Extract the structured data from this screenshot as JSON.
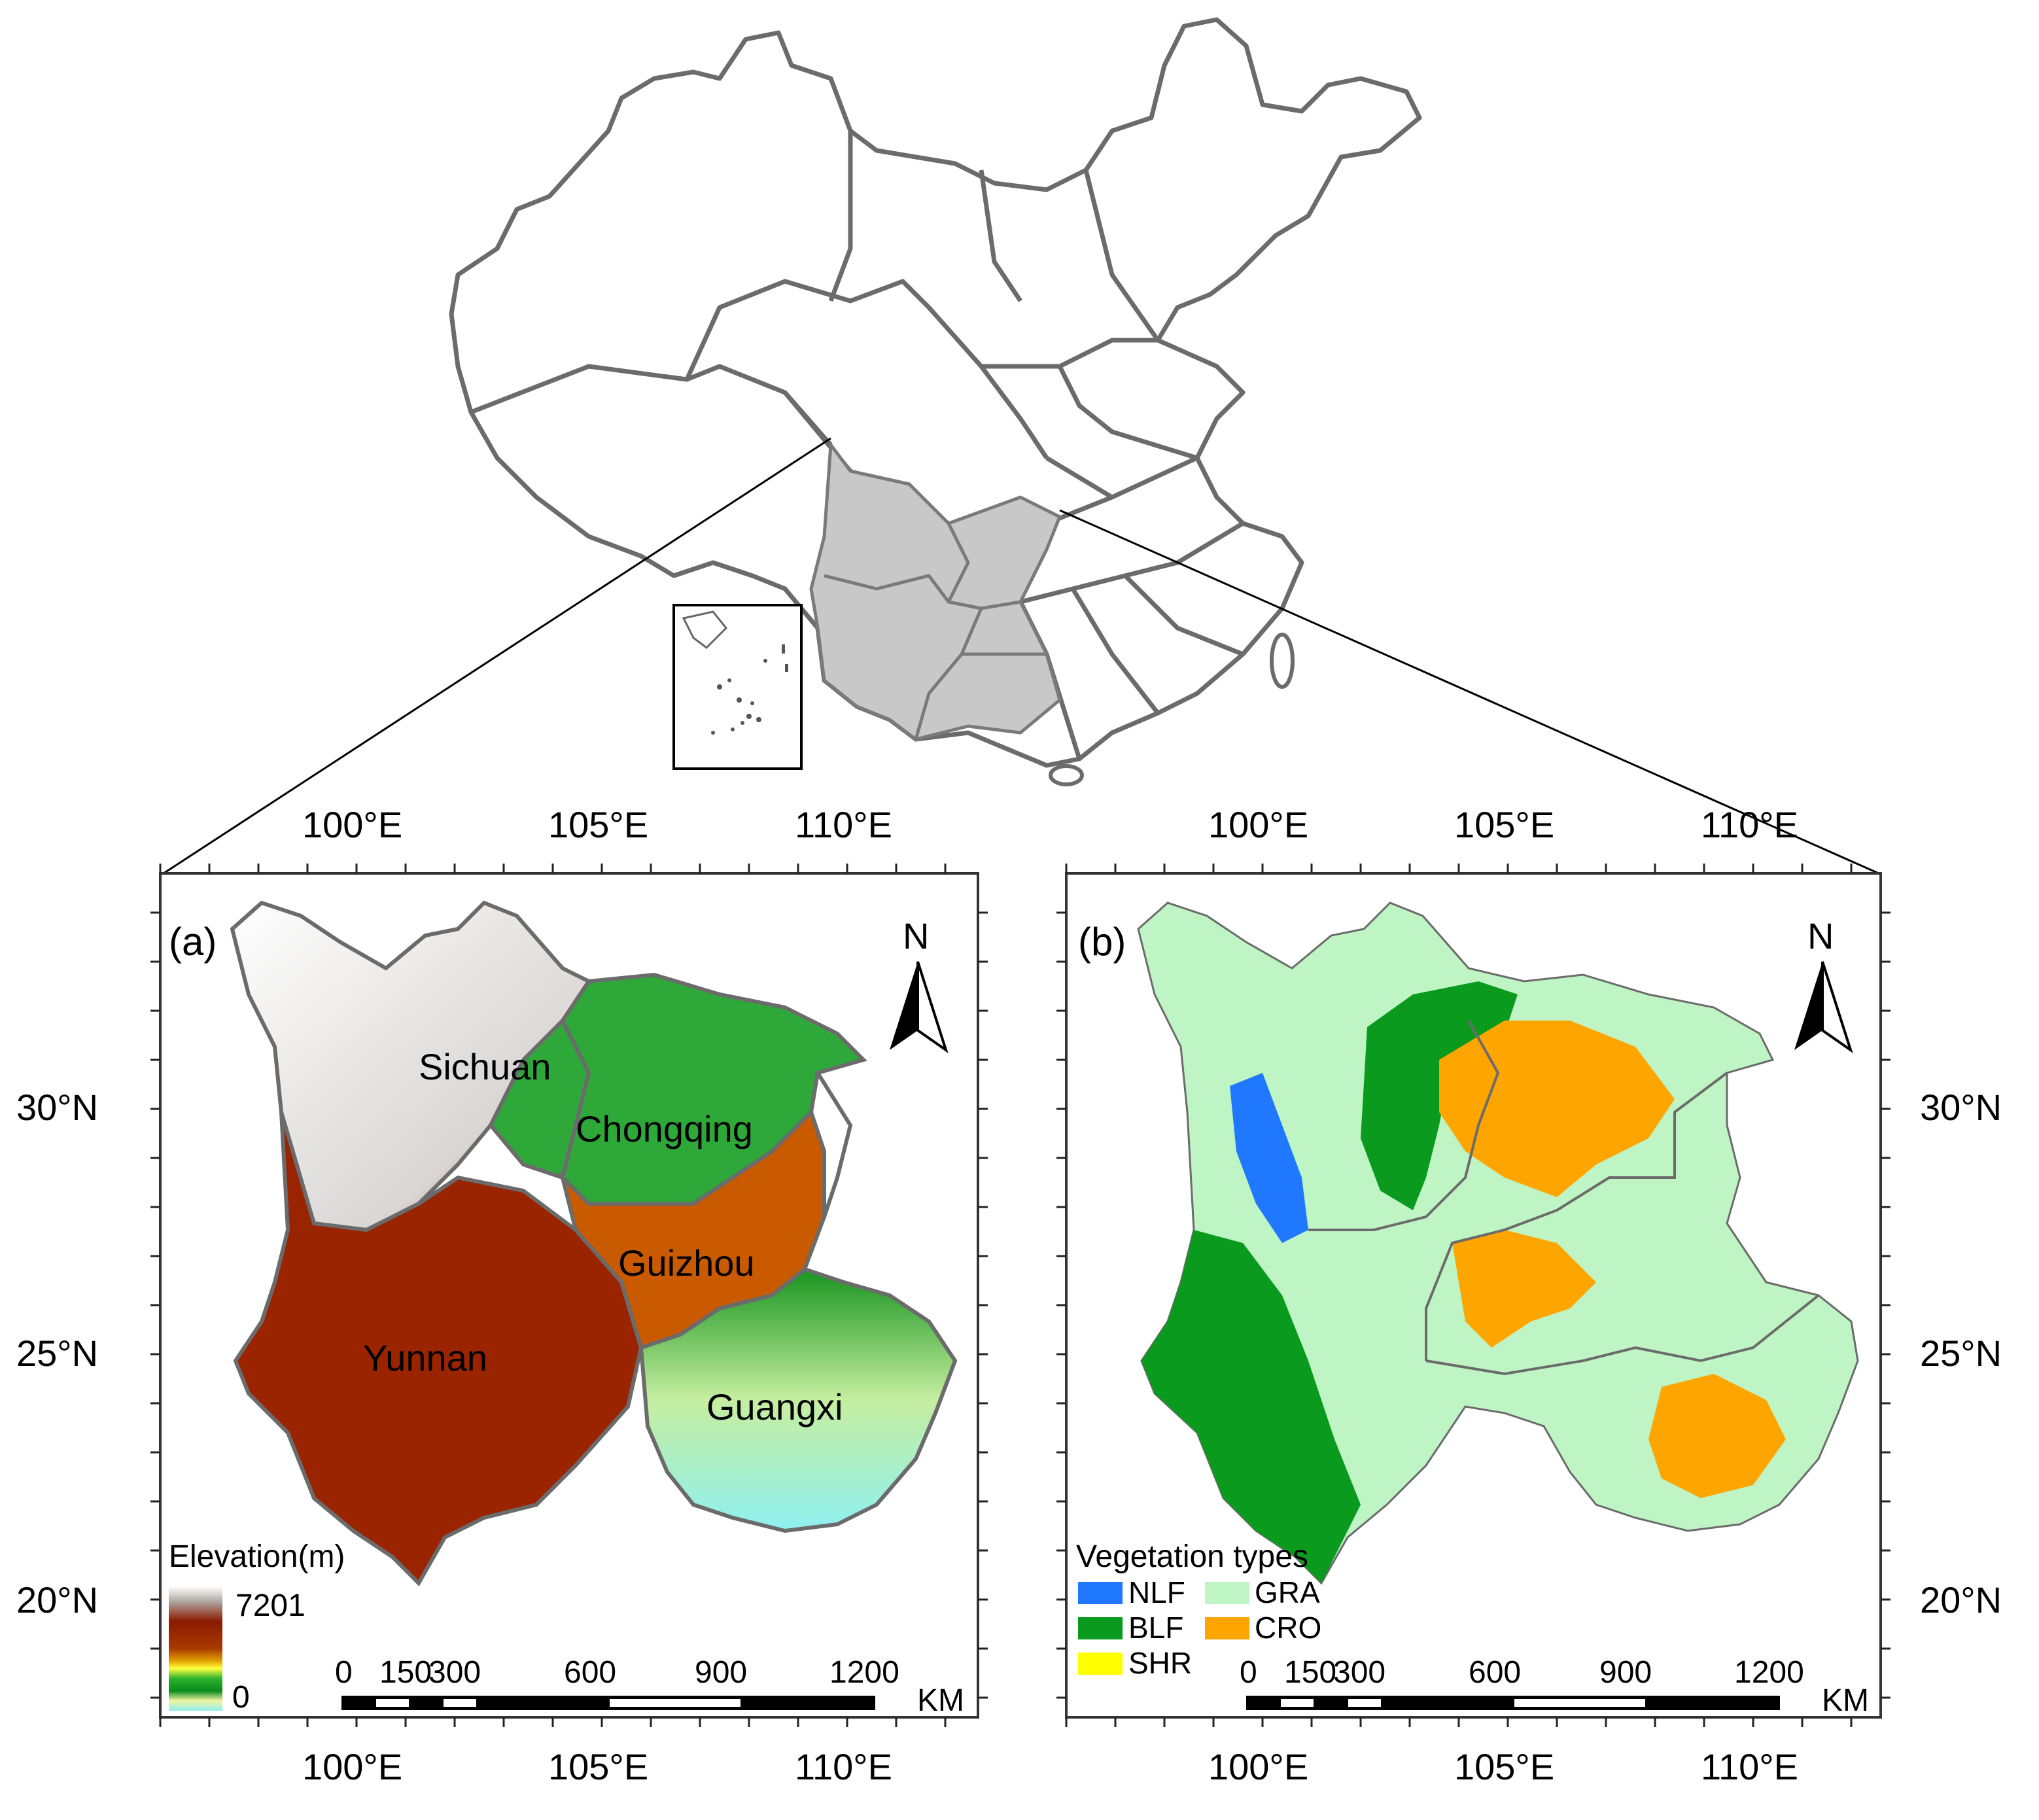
{
  "panels": {
    "a": {
      "tag": "(a)",
      "north": "N",
      "regions": [
        "Sichuan",
        "Chongqing",
        "Guizhou",
        "Yunnan",
        "Guangxi"
      ],
      "legend": {
        "title": "Elevation(m)",
        "max": "7201",
        "min": "0"
      }
    },
    "b": {
      "tag": "(b)",
      "north": "N",
      "legend": {
        "title": "Vegetation types",
        "items": [
          {
            "label": "NLF",
            "color": "#1f78ff"
          },
          {
            "label": "GRA",
            "color": "#bff5c4"
          },
          {
            "label": "BLF",
            "color": "#0a9a1e"
          },
          {
            "label": "CRO",
            "color": "#ffa500"
          },
          {
            "label": "SHR",
            "color": "#ffff00"
          }
        ]
      }
    }
  },
  "axes": {
    "lon_labels": [
      "100°E",
      "105°E",
      "110°E"
    ],
    "lat_labels": [
      "30°N",
      "25°N",
      "20°N"
    ]
  },
  "scale_bar": {
    "ticks": [
      "0",
      "150",
      "300",
      "600",
      "900",
      "1200"
    ],
    "unit": "KM"
  },
  "colors": {
    "highlight_provinces": "#c8c8c8",
    "border": "#6b6b6b",
    "elev_high": "#ffffff",
    "elev_mid": "#8b1a00",
    "elev_low": "#0a9a1e",
    "elev_min": "#8ff0f0"
  }
}
